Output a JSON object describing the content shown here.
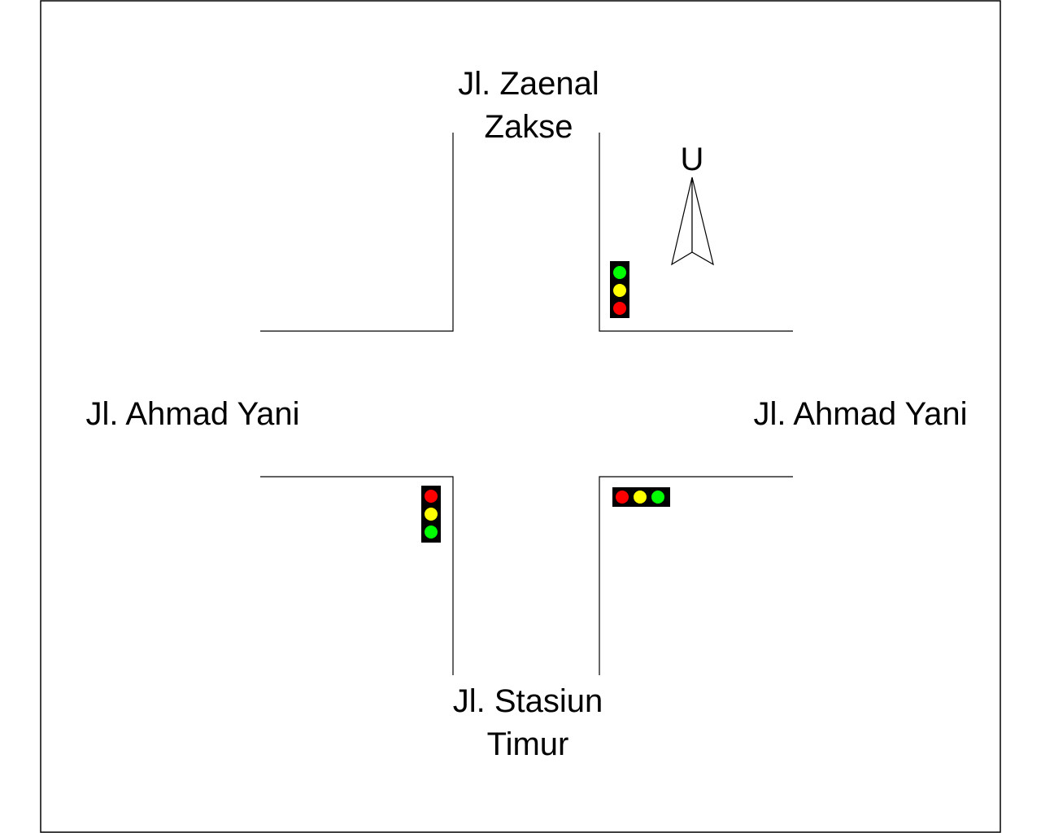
{
  "roads": {
    "north": {
      "line1": "Jl. Zaenal",
      "line2": "Zakse"
    },
    "west": {
      "label": "Jl. Ahmad Yani"
    },
    "east": {
      "label": "Jl. Ahmad Yani"
    },
    "south": {
      "line1": "Jl. Stasiun",
      "line2": "Timur"
    }
  },
  "compass": {
    "label": "U",
    "icon": "north-arrow-icon"
  },
  "colors": {
    "road_edge": "#000000",
    "signal_housing": "#000000",
    "red": "#ff0000",
    "yellow": "#ffff00",
    "green": "#00ff00"
  },
  "traffic_lights": [
    {
      "id": "northeast",
      "orientation": "vertical",
      "lamps": [
        "green",
        "yellow",
        "red"
      ]
    },
    {
      "id": "southwest",
      "orientation": "vertical",
      "lamps": [
        "red",
        "yellow",
        "green"
      ]
    },
    {
      "id": "southeast",
      "orientation": "horizontal",
      "lamps": [
        "red",
        "yellow",
        "green"
      ]
    }
  ]
}
